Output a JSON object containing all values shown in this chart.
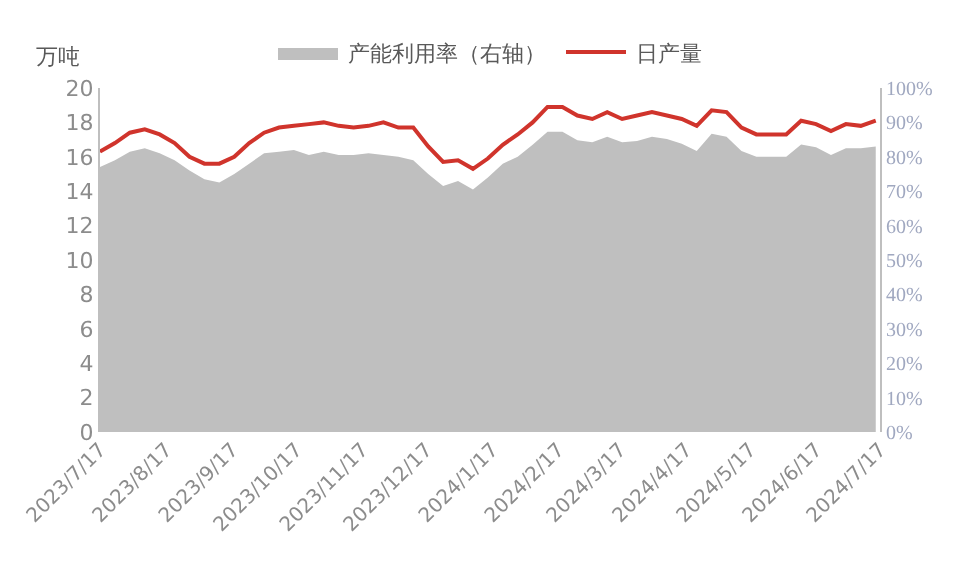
{
  "chart_data": {
    "type": "line",
    "ylabel": "万吨",
    "x": [
      "2023-07-17",
      "2023-07-24",
      "2023-07-31",
      "2023-08-07",
      "2023-08-14",
      "2023-08-21",
      "2023-08-28",
      "2023-09-04",
      "2023-09-11",
      "2023-09-18",
      "2023-09-25",
      "2023-10-02",
      "2023-10-09",
      "2023-10-16",
      "2023-10-23",
      "2023-10-30",
      "2023-11-06",
      "2023-11-13",
      "2023-11-20",
      "2023-11-27",
      "2023-12-04",
      "2023-12-11",
      "2023-12-18",
      "2023-12-25",
      "2024-01-01",
      "2024-01-08",
      "2024-01-15",
      "2024-01-22",
      "2024-01-29",
      "2024-02-05",
      "2024-02-12",
      "2024-02-19",
      "2024-02-26",
      "2024-03-04",
      "2024-03-11",
      "2024-03-18",
      "2024-03-25",
      "2024-04-01",
      "2024-04-08",
      "2024-04-15",
      "2024-04-22",
      "2024-04-29",
      "2024-05-06",
      "2024-05-13",
      "2024-05-20",
      "2024-05-27",
      "2024-06-03",
      "2024-06-10",
      "2024-06-17",
      "2024-06-24",
      "2024-07-01",
      "2024-07-08",
      "2024-07-15"
    ],
    "series": [
      {
        "name": "产能利用率（右轴）",
        "type": "area",
        "axis": "y2",
        "color": "#bfbfbf",
        "values": [
          77,
          79,
          81.5,
          82.5,
          81,
          79,
          76,
          73.5,
          72.5,
          75,
          78,
          81,
          81.5,
          82,
          80.5,
          81.5,
          80.5,
          80.5,
          81,
          80.5,
          80,
          79,
          75,
          71.5,
          73,
          70.5,
          74,
          78,
          80,
          83.5,
          87.3,
          87.3,
          84.8,
          84.2,
          85.8,
          84.2,
          84.6,
          85.8,
          85.2,
          83.8,
          81.7,
          86.7,
          85.8,
          81.7,
          80,
          80,
          80,
          83.6,
          82.8,
          80.5,
          82.5,
          82.5,
          83
        ]
      },
      {
        "name": "日产量",
        "color": "#d0342c",
        "values": [
          16.3,
          16.8,
          17.4,
          17.6,
          17.3,
          16.8,
          16.0,
          15.6,
          15.6,
          16.0,
          16.8,
          17.4,
          17.7,
          17.8,
          17.9,
          18.0,
          17.8,
          17.7,
          17.8,
          18.0,
          17.7,
          17.7,
          16.6,
          15.7,
          15.8,
          15.3,
          15.9,
          16.7,
          17.3,
          18.0,
          18.9,
          18.9,
          18.4,
          18.2,
          18.6,
          18.2,
          18.4,
          18.6,
          18.4,
          18.2,
          17.8,
          18.7,
          18.6,
          17.7,
          17.3,
          17.3,
          17.3,
          18.1,
          17.9,
          17.5,
          17.9,
          17.8,
          18.1
        ]
      }
    ],
    "xlim": [
      "2023-07-17",
      "2024-07-17"
    ],
    "xticks": [
      {
        "value": "2023-07-17",
        "label": "2023/7/17"
      },
      {
        "value": "2023-08-17",
        "label": "2023/8/17"
      },
      {
        "value": "2023-09-17",
        "label": "2023/9/17"
      },
      {
        "value": "2023-10-17",
        "label": "2023/10/17"
      },
      {
        "value": "2023-11-17",
        "label": "2023/11/17"
      },
      {
        "value": "2023-12-17",
        "label": "2023/12/17"
      },
      {
        "value": "2024-01-17",
        "label": "2024/1/17"
      },
      {
        "value": "2024-02-17",
        "label": "2024/2/17"
      },
      {
        "value": "2024-03-17",
        "label": "2024/3/17"
      },
      {
        "value": "2024-04-17",
        "label": "2024/4/17"
      },
      {
        "value": "2024-05-17",
        "label": "2024/5/17"
      },
      {
        "value": "2024-06-17",
        "label": "2024/6/17"
      },
      {
        "value": "2024-07-17",
        "label": "2024/7/17"
      }
    ],
    "ylim": [
      0,
      20
    ],
    "yticks": [
      0,
      2,
      4,
      6,
      8,
      10,
      12,
      14,
      16,
      18,
      20
    ],
    "y2lim": [
      0,
      100
    ],
    "y2ticks": [
      {
        "value": 0,
        "label": "0%"
      },
      {
        "value": 10,
        "label": "10%"
      },
      {
        "value": 20,
        "label": "20%"
      },
      {
        "value": 30,
        "label": "30%"
      },
      {
        "value": 40,
        "label": "40%"
      },
      {
        "value": 50,
        "label": "50%"
      },
      {
        "value": 60,
        "label": "60%"
      },
      {
        "value": 70,
        "label": "70%"
      },
      {
        "value": 80,
        "label": "80%"
      },
      {
        "value": 90,
        "label": "90%"
      },
      {
        "value": 100,
        "label": "100%"
      }
    ],
    "legend": "top",
    "marker": "none",
    "line_style": "solid"
  }
}
